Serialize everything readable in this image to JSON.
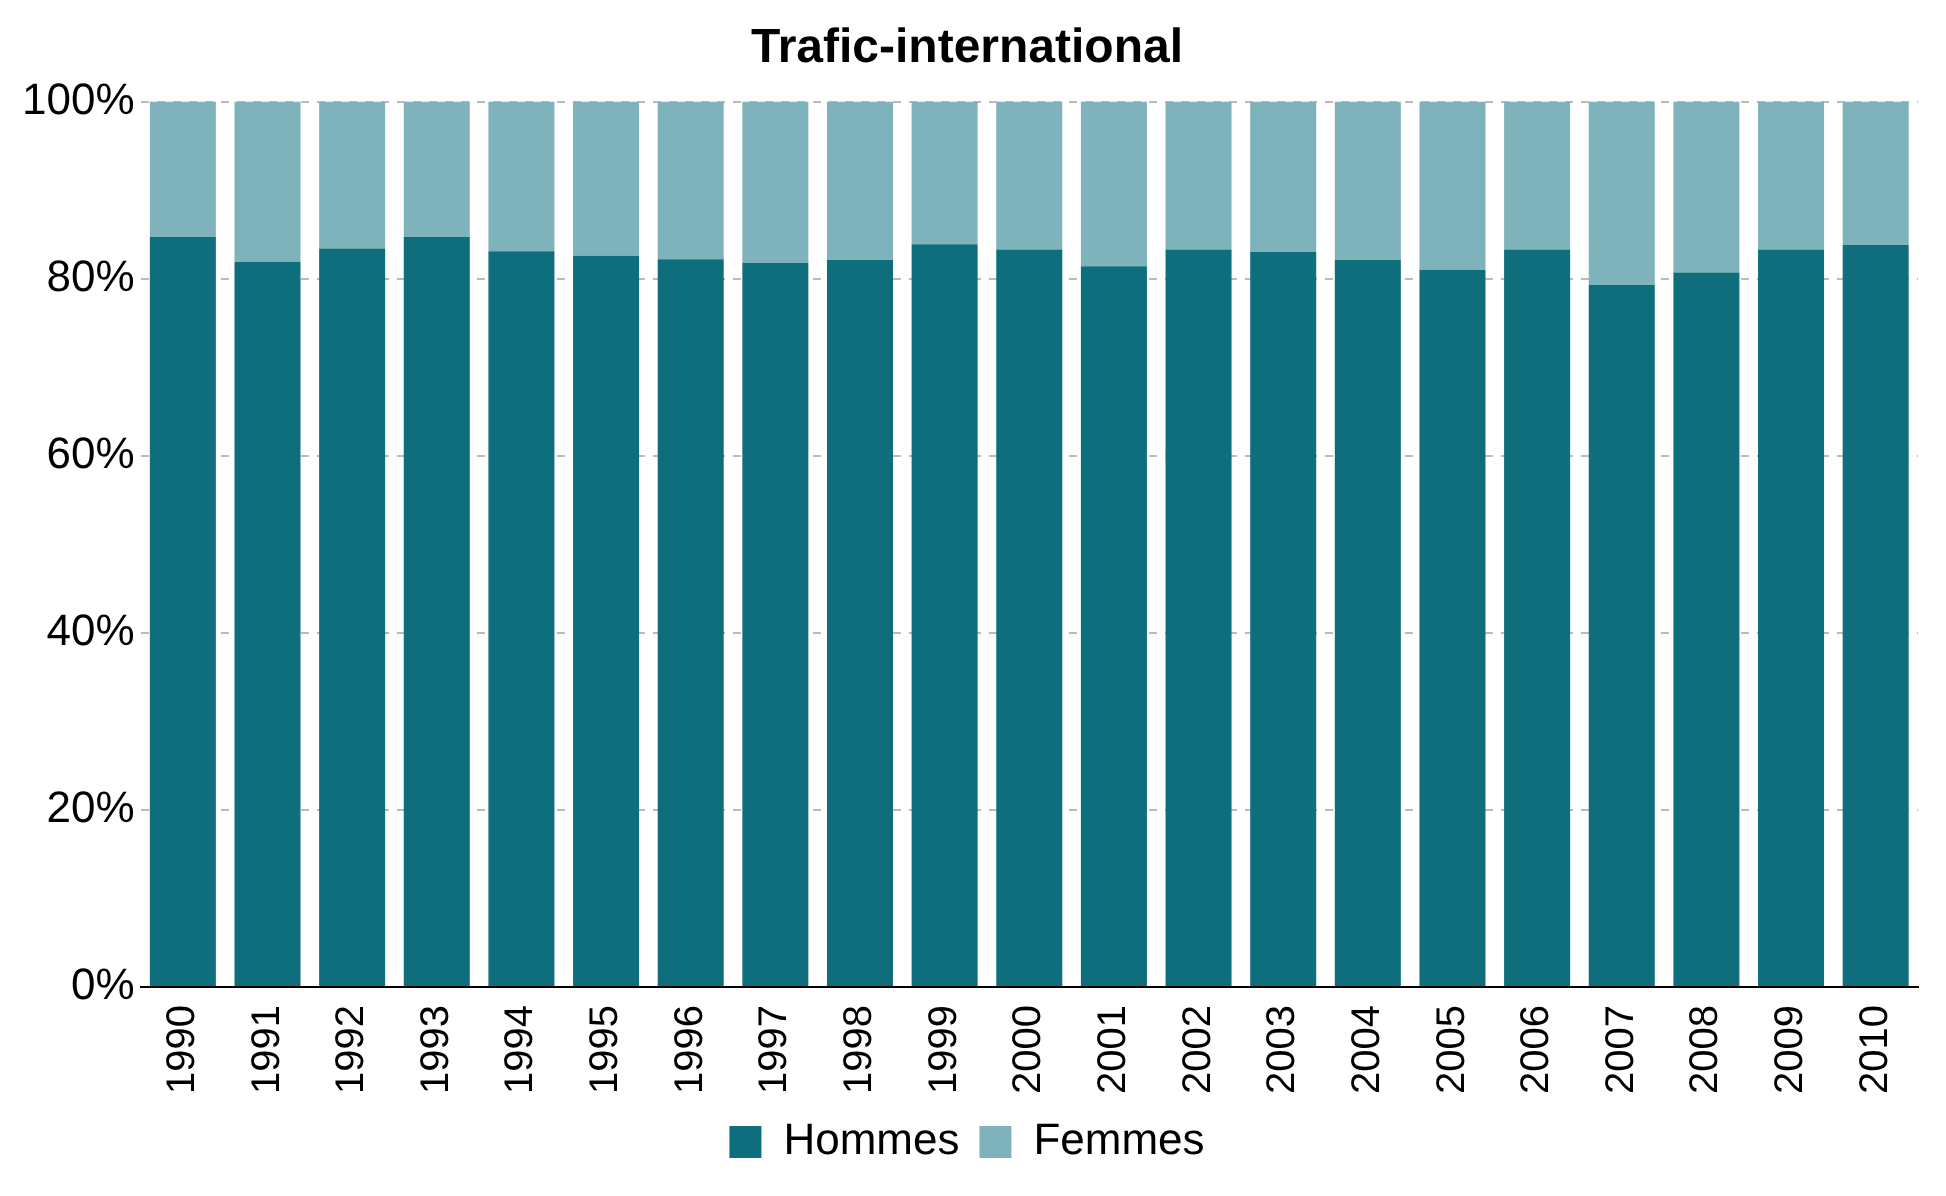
{
  "chart_data": {
    "type": "bar",
    "title": "Trafic-international",
    "stacked": true,
    "categories": [
      "1990",
      "1991",
      "1992",
      "1993",
      "1994",
      "1995",
      "1996",
      "1997",
      "1998",
      "1999",
      "2000",
      "2001",
      "2002",
      "2003",
      "2004",
      "2005",
      "2006",
      "2007",
      "2008",
      "2009",
      "2010"
    ],
    "series": [
      {
        "name": "Hommes",
        "color": "#0e6e7b",
        "values": [
          84.7,
          81.9,
          83.4,
          84.7,
          83.1,
          82.6,
          82.2,
          81.8,
          82.1,
          83.9,
          83.3,
          81.4,
          83.3,
          83.0,
          82.1,
          81.0,
          83.3,
          79.3,
          80.7,
          83.3,
          83.8
        ]
      },
      {
        "name": "Femmes",
        "color": "#7fb3bb",
        "values": [
          15.3,
          18.1,
          16.6,
          15.3,
          16.9,
          17.4,
          17.8,
          18.2,
          17.9,
          16.1,
          16.7,
          18.6,
          16.7,
          17.0,
          17.9,
          19.0,
          16.7,
          20.7,
          19.3,
          16.7,
          16.2
        ]
      }
    ],
    "ylim": [
      0,
      100
    ],
    "yticks": [
      {
        "value": 0,
        "label": "0%"
      },
      {
        "value": 20,
        "label": "20%"
      },
      {
        "value": 40,
        "label": "40%"
      },
      {
        "value": 60,
        "label": "60%"
      },
      {
        "value": 80,
        "label": "80%"
      },
      {
        "value": 100,
        "label": "100%"
      }
    ],
    "grid": "y",
    "legend": "bottom"
  }
}
